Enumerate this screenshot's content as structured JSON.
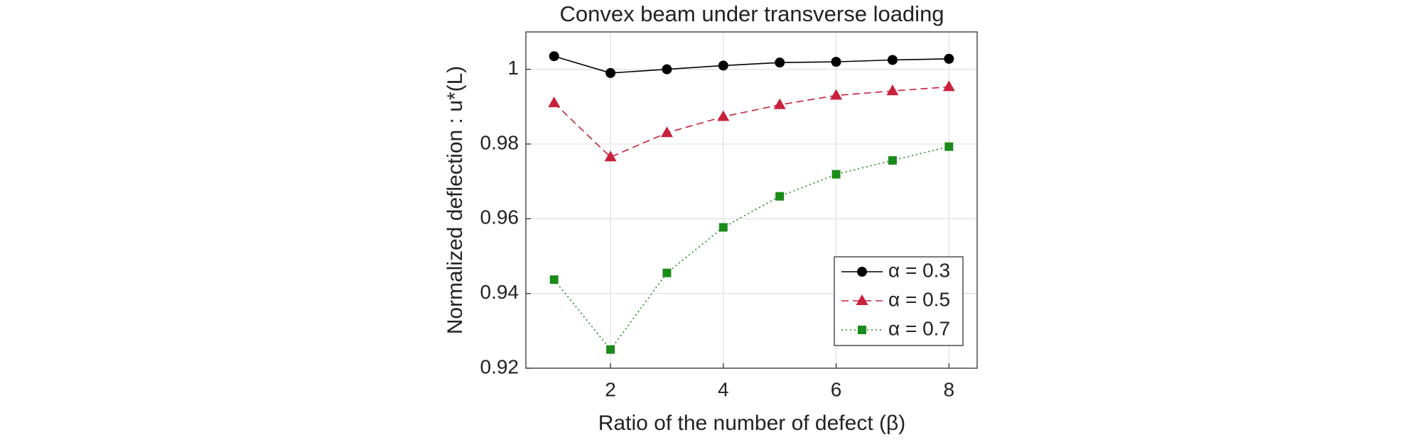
{
  "chart_data": {
    "type": "line",
    "title": "Convex beam under transverse loading",
    "xlabel": "Ratio of the number of defect (β)",
    "ylabel": "Normalized deflection : u*(L)",
    "x": [
      1,
      2,
      3,
      4,
      5,
      6,
      7,
      8
    ],
    "series": [
      {
        "name": "α = 0.3",
        "color": "#000000",
        "marker": "circle",
        "linestyle": "solid",
        "values": [
          1.0035,
          0.999,
          1.0,
          1.001,
          1.0018,
          1.002,
          1.0025,
          1.0028
        ]
      },
      {
        "name": "α = 0.5",
        "color": "#c8213b",
        "marker": "triangle",
        "linestyle": "dashed",
        "values": [
          0.991,
          0.9765,
          0.983,
          0.9873,
          0.9905,
          0.993,
          0.9942,
          0.9953
        ]
      },
      {
        "name": "α = 0.7",
        "color": "#1a8a1a",
        "marker": "square",
        "linestyle": "dotted",
        "values": [
          0.9437,
          0.925,
          0.9455,
          0.9577,
          0.966,
          0.9719,
          0.9756,
          0.9793
        ]
      }
    ],
    "xlim": [
      0.5,
      8.5
    ],
    "xticks": [
      2,
      4,
      6,
      8
    ],
    "ylim": [
      0.92,
      1.01
    ],
    "yticks": [
      0.92,
      0.94,
      0.96,
      0.98,
      1
    ],
    "grid": true,
    "legend": "lower right"
  }
}
